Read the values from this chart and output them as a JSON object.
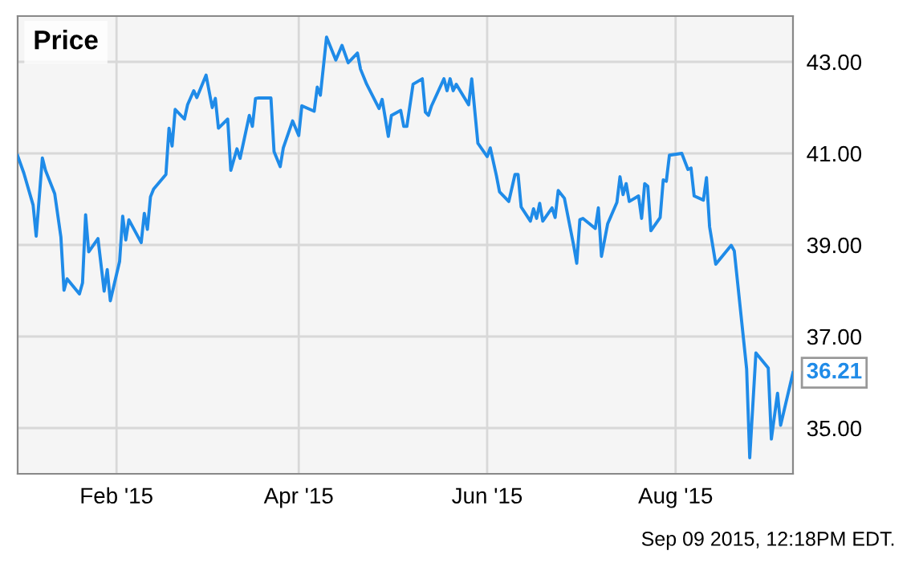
{
  "chart_data": {
    "type": "line",
    "title": "Price",
    "x": [
      "2014-12-31",
      "2015-01-02",
      "2015-01-05",
      "2015-01-06",
      "2015-01-08",
      "2015-01-09",
      "2015-01-12",
      "2015-01-14",
      "2015-01-15",
      "2015-01-16",
      "2015-01-20",
      "2015-01-21",
      "2015-01-22",
      "2015-01-23",
      "2015-01-26",
      "2015-01-28",
      "2015-01-29",
      "2015-01-30",
      "2015-02-02",
      "2015-02-03",
      "2015-02-04",
      "2015-02-05",
      "2015-02-09",
      "2015-02-10",
      "2015-02-11",
      "2015-02-12",
      "2015-02-13",
      "2015-02-17",
      "2015-02-18",
      "2015-02-19",
      "2015-02-20",
      "2015-02-23",
      "2015-02-24",
      "2015-02-26",
      "2015-02-27",
      "2015-03-02",
      "2015-03-04",
      "2015-03-05",
      "2015-03-06",
      "2015-03-09",
      "2015-03-10",
      "2015-03-12",
      "2015-03-13",
      "2015-03-16",
      "2015-03-17",
      "2015-03-18",
      "2015-03-19",
      "2015-03-23",
      "2015-03-24",
      "2015-03-26",
      "2015-03-27",
      "2015-03-30",
      "2015-04-01",
      "2015-04-02",
      "2015-04-06",
      "2015-04-07",
      "2015-04-08",
      "2015-04-10",
      "2015-04-13",
      "2015-04-15",
      "2015-04-17",
      "2015-04-20",
      "2015-04-21",
      "2015-04-23",
      "2015-04-27",
      "2015-04-28",
      "2015-04-30",
      "2015-05-01",
      "2015-05-04",
      "2015-05-05",
      "2015-05-06",
      "2015-05-08",
      "2015-05-11",
      "2015-05-12",
      "2015-05-13",
      "2015-05-14",
      "2015-05-18",
      "2015-05-19",
      "2015-05-20",
      "2015-05-21",
      "2015-05-22",
      "2015-05-26",
      "2015-05-27",
      "2015-05-29",
      "2015-06-01",
      "2015-06-02",
      "2015-06-04",
      "2015-06-05",
      "2015-06-08",
      "2015-06-10",
      "2015-06-11",
      "2015-06-12",
      "2015-06-15",
      "2015-06-16",
      "2015-06-17",
      "2015-06-18",
      "2015-06-19",
      "2015-06-22",
      "2015-06-23",
      "2015-06-24",
      "2015-06-26",
      "2015-06-29",
      "2015-06-30",
      "2015-07-01",
      "2015-07-02",
      "2015-07-06",
      "2015-07-07",
      "2015-07-08",
      "2015-07-10",
      "2015-07-13",
      "2015-07-14",
      "2015-07-15",
      "2015-07-16",
      "2015-07-17",
      "2015-07-20",
      "2015-07-21",
      "2015-07-22",
      "2015-07-23",
      "2015-07-24",
      "2015-07-27",
      "2015-07-28",
      "2015-07-29",
      "2015-07-30",
      "2015-08-03",
      "2015-08-05",
      "2015-08-06",
      "2015-08-07",
      "2015-08-10",
      "2015-08-11",
      "2015-08-12",
      "2015-08-14",
      "2015-08-19",
      "2015-08-20",
      "2015-08-24",
      "2015-08-25",
      "2015-08-27",
      "2015-08-31",
      "2015-09-01",
      "2015-09-03",
      "2015-09-04",
      "2015-09-08"
    ],
    "series": [
      {
        "color": "#1f8be8",
        "values": [
          40.95,
          40.57,
          39.87,
          39.19,
          40.9,
          40.63,
          40.12,
          39.17,
          38.01,
          38.26,
          37.93,
          38.17,
          39.66,
          38.85,
          39.14,
          37.99,
          38.46,
          37.78,
          38.64,
          39.63,
          39.11,
          39.55,
          39.05,
          39.69,
          39.34,
          40.05,
          40.22,
          40.54,
          41.55,
          41.16,
          41.96,
          41.75,
          42.06,
          42.37,
          42.22,
          42.71,
          42.0,
          42.2,
          41.55,
          41.75,
          40.63,
          41.1,
          40.89,
          41.83,
          41.59,
          42.2,
          42.21,
          42.21,
          41.04,
          40.71,
          41.12,
          41.71,
          41.39,
          42.04,
          41.92,
          42.45,
          42.27,
          43.54,
          43.04,
          43.36,
          42.98,
          43.19,
          42.84,
          42.51,
          41.98,
          42.18,
          41.37,
          41.83,
          41.94,
          41.59,
          41.59,
          42.51,
          42.63,
          41.9,
          41.83,
          42.04,
          42.63,
          42.37,
          42.63,
          42.37,
          42.51,
          42.06,
          42.63,
          41.22,
          40.93,
          41.12,
          40.51,
          40.16,
          39.95,
          40.54,
          40.54,
          39.83,
          39.52,
          39.79,
          39.58,
          39.91,
          39.52,
          39.81,
          39.6,
          40.19,
          40.02,
          38.99,
          38.6,
          39.55,
          39.58,
          39.36,
          39.81,
          38.75,
          39.46,
          39.93,
          40.49,
          40.1,
          40.34,
          39.95,
          40.07,
          39.58,
          40.34,
          40.28,
          39.31,
          39.6,
          40.42,
          40.39,
          40.96,
          41.0,
          40.65,
          40.68,
          40.07,
          39.98,
          40.47,
          39.4,
          38.58,
          38.99,
          38.87,
          36.29,
          34.35,
          36.64,
          36.31,
          34.76,
          35.76,
          35.06,
          36.21
        ]
      }
    ],
    "xlim": [
      "2014-12-31",
      "2015-09-08"
    ],
    "xticks": [
      {
        "value": "2015-02-01",
        "label": "Feb '15"
      },
      {
        "value": "2015-04-01",
        "label": "Apr '15"
      },
      {
        "value": "2015-06-01",
        "label": "Jun '15"
      },
      {
        "value": "2015-08-01",
        "label": "Aug '15"
      }
    ],
    "ylim": [
      34,
      44
    ],
    "yticks": [
      {
        "value": 35,
        "label": "35.00"
      },
      {
        "value": 37,
        "label": "37.00"
      },
      {
        "value": 39,
        "label": "39.00"
      },
      {
        "value": 41,
        "label": "41.00"
      },
      {
        "value": 43,
        "label": "43.00"
      }
    ],
    "grid": true,
    "annotations": [
      {
        "text": "36.21",
        "x": "2015-09-08",
        "y": 36.21
      },
      "Sep 09 2015, 12:18PM EDT."
    ]
  }
}
